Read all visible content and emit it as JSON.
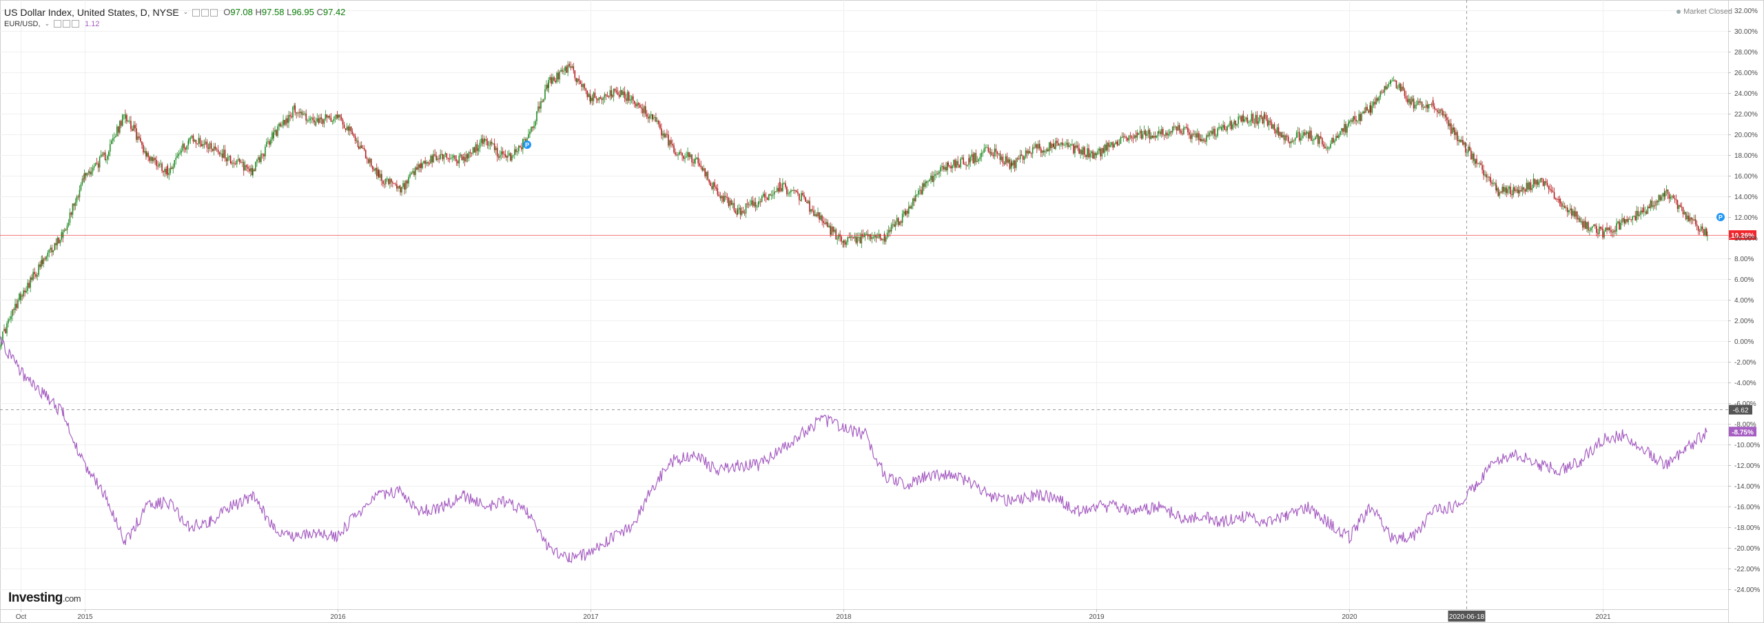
{
  "legend": {
    "main_title": "US Dollar Index, United States, D, NYSE",
    "o_label": "O",
    "o_value": "97.08",
    "h_label": "H",
    "h_value": "97.58",
    "l_label": "L",
    "l_value": "96.95",
    "c_label": "C",
    "c_value": "97.42",
    "compare_label": "EUR/USD,",
    "compare_value": "1.12",
    "caret": "⌄"
  },
  "status": {
    "label": "Market Closed"
  },
  "logo": {
    "main": "Investing",
    "suffix": ".com"
  },
  "colors": {
    "up": "#1f8a22",
    "down": "#b31a1a",
    "compare": "#a65ec2",
    "last_price": "#f0262c",
    "grid": "#efefef",
    "crosshair": "#9a9a9a",
    "marker": "#2196f3",
    "axis_text": "#4a4a4a"
  },
  "chart_data": {
    "type": "line",
    "title": "US Dollar Index, United States, D, NYSE",
    "xlabel": "",
    "ylabel": "",
    "y_axis_position": "right",
    "grid": true,
    "x_ticks": [
      "Oct",
      "2015",
      "2016",
      "2017",
      "2018",
      "2019",
      "2020",
      "2021"
    ],
    "y_ticks": [
      "32.00%",
      "30.00%",
      "28.00%",
      "26.00%",
      "24.00%",
      "22.00%",
      "20.00%",
      "18.00%",
      "16.00%",
      "14.00%",
      "12.00%",
      "10.00%",
      "8.00%",
      "6.00%",
      "4.00%",
      "2.00%",
      "0.00%",
      "-2.00%",
      "-4.00%",
      "-6.00%",
      "-8.00%",
      "-10.00%",
      "-12.00%",
      "-14.00%",
      "-16.00%",
      "-18.00%",
      "-20.00%",
      "-22.00%",
      "-24.00%"
    ],
    "ylim": [
      -25,
      33
    ],
    "x_range": [
      "2014-09-01",
      "2021-07-01"
    ],
    "series": [
      {
        "name": "US Dollar Index, United States, D, NYSE",
        "style": "candlestick",
        "x": [
          "2014-09-01",
          "2014-10-01",
          "2014-11-01",
          "2014-12-01",
          "2015-01-01",
          "2015-02-01",
          "2015-03-01",
          "2015-04-01",
          "2015-05-01",
          "2015-06-01",
          "2015-07-01",
          "2015-08-01",
          "2015-09-01",
          "2015-10-01",
          "2015-11-01",
          "2015-12-01",
          "2016-01-01",
          "2016-02-01",
          "2016-03-01",
          "2016-04-01",
          "2016-05-01",
          "2016-06-01",
          "2016-07-01",
          "2016-08-01",
          "2016-09-01",
          "2016-10-01",
          "2016-11-01",
          "2016-12-01",
          "2017-01-01",
          "2017-02-01",
          "2017-03-01",
          "2017-04-01",
          "2017-05-01",
          "2017-06-01",
          "2017-07-01",
          "2017-08-01",
          "2017-09-01",
          "2017-10-01",
          "2017-11-01",
          "2017-12-01",
          "2018-01-01",
          "2018-02-01",
          "2018-03-01",
          "2018-04-01",
          "2018-05-01",
          "2018-06-01",
          "2018-07-01",
          "2018-08-01",
          "2018-09-01",
          "2018-10-01",
          "2018-11-01",
          "2018-12-01",
          "2019-01-01",
          "2019-02-01",
          "2019-03-01",
          "2019-04-01",
          "2019-05-01",
          "2019-06-01",
          "2019-07-01",
          "2019-08-01",
          "2019-09-01",
          "2019-10-01",
          "2019-11-01",
          "2019-12-01",
          "2020-01-01",
          "2020-02-01",
          "2020-03-01",
          "2020-04-01",
          "2020-05-01",
          "2020-06-01",
          "2020-07-01",
          "2020-08-01",
          "2020-09-01",
          "2020-10-01",
          "2020-11-01",
          "2020-12-01",
          "2021-01-01",
          "2021-02-01",
          "2021-03-01",
          "2021-04-01",
          "2021-05-01",
          "2021-06-01"
        ],
        "y": [
          0.0,
          4.5,
          7.5,
          10.5,
          16.0,
          18.0,
          22.0,
          18.0,
          16.5,
          19.5,
          19.0,
          17.5,
          16.5,
          20.0,
          22.5,
          21.0,
          22.0,
          19.0,
          16.0,
          14.5,
          17.0,
          18.0,
          17.5,
          19.5,
          17.5,
          19.5,
          25.0,
          26.5,
          23.5,
          24.0,
          23.5,
          21.5,
          18.5,
          17.5,
          14.5,
          12.5,
          13.5,
          15.0,
          14.0,
          11.5,
          9.5,
          10.0,
          10.0,
          12.5,
          15.5,
          17.0,
          17.5,
          18.5,
          17.0,
          18.5,
          19.0,
          18.5,
          18.0,
          19.5,
          20.0,
          20.0,
          20.5,
          19.5,
          20.5,
          21.5,
          21.5,
          19.5,
          20.0,
          19.0,
          21.0,
          22.5,
          25.5,
          23.0,
          23.0,
          20.0,
          17.5,
          14.5,
          14.5,
          15.5,
          13.5,
          11.5,
          10.5,
          11.5,
          12.5,
          14.5,
          12.0,
          10.26
        ]
      },
      {
        "name": "EUR/USD",
        "style": "line",
        "x": [
          "2014-09-01",
          "2014-10-01",
          "2014-11-01",
          "2014-12-01",
          "2015-01-01",
          "2015-02-01",
          "2015-03-01",
          "2015-04-01",
          "2015-05-01",
          "2015-06-01",
          "2015-07-01",
          "2015-08-01",
          "2015-09-01",
          "2015-10-01",
          "2015-11-01",
          "2015-12-01",
          "2016-01-01",
          "2016-02-01",
          "2016-03-01",
          "2016-04-01",
          "2016-05-01",
          "2016-06-01",
          "2016-07-01",
          "2016-08-01",
          "2016-09-01",
          "2016-10-01",
          "2016-11-01",
          "2016-12-01",
          "2017-01-01",
          "2017-02-01",
          "2017-03-01",
          "2017-04-01",
          "2017-05-01",
          "2017-06-01",
          "2017-07-01",
          "2017-08-01",
          "2017-09-01",
          "2017-10-01",
          "2017-11-01",
          "2017-12-01",
          "2018-01-01",
          "2018-02-01",
          "2018-03-01",
          "2018-04-01",
          "2018-05-01",
          "2018-06-01",
          "2018-07-01",
          "2018-08-01",
          "2018-09-01",
          "2018-10-01",
          "2018-11-01",
          "2018-12-01",
          "2019-01-01",
          "2019-02-01",
          "2019-03-01",
          "2019-04-01",
          "2019-05-01",
          "2019-06-01",
          "2019-07-01",
          "2019-08-01",
          "2019-09-01",
          "2019-10-01",
          "2019-11-01",
          "2019-12-01",
          "2020-01-01",
          "2020-02-01",
          "2020-03-01",
          "2020-04-01",
          "2020-05-01",
          "2020-06-01",
          "2020-07-01",
          "2020-08-01",
          "2020-09-01",
          "2020-10-01",
          "2020-11-01",
          "2020-12-01",
          "2021-01-01",
          "2021-02-01",
          "2021-03-01",
          "2021-04-01",
          "2021-05-01",
          "2021-06-01"
        ],
        "y": [
          0.0,
          -3.0,
          -5.0,
          -7.0,
          -12.0,
          -15.0,
          -19.5,
          -16.0,
          -15.5,
          -18.0,
          -17.5,
          -16.0,
          -15.0,
          -18.0,
          -19.0,
          -18.5,
          -19.0,
          -16.5,
          -15.0,
          -14.5,
          -16.5,
          -16.0,
          -15.0,
          -16.0,
          -15.5,
          -16.5,
          -20.0,
          -21.0,
          -20.5,
          -19.0,
          -18.0,
          -14.0,
          -11.5,
          -11.0,
          -12.5,
          -12.0,
          -12.0,
          -10.5,
          -9.0,
          -7.5,
          -8.5,
          -9.0,
          -13.0,
          -14.0,
          -13.0,
          -13.0,
          -13.5,
          -15.0,
          -15.5,
          -15.0,
          -15.0,
          -16.5,
          -16.0,
          -16.0,
          -16.5,
          -16.0,
          -17.0,
          -17.0,
          -17.5,
          -17.0,
          -17.5,
          -17.0,
          -16.0,
          -17.5,
          -19.0,
          -16.0,
          -19.0,
          -19.0,
          -16.5,
          -16.0,
          -14.0,
          -11.5,
          -11.0,
          -12.0,
          -12.5,
          -11.5,
          -9.5,
          -9.0,
          -10.5,
          -12.0,
          -10.5,
          -8.75
        ]
      }
    ],
    "last_value_labels": [
      {
        "text": "10.26%",
        "value": 10.26,
        "series": "US Dollar Index, United States, D, NYSE"
      },
      {
        "text": "-8.75%",
        "value": -8.75,
        "series": "EUR/USD"
      }
    ],
    "crosshair": {
      "x": "2020-06-18",
      "x_label": "2020-06-18",
      "y": -6.62,
      "y_label": "-6.62"
    },
    "markers": [
      {
        "x": "2016-10-01",
        "y": 19.0,
        "label": "P"
      },
      {
        "x": "2021-06-20",
        "y": 12.0,
        "label": "P"
      }
    ]
  }
}
